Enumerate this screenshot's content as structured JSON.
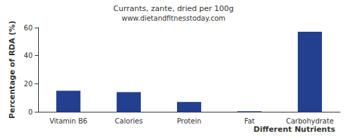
{
  "chart_data": {
    "type": "bar",
    "title": "Currants, zante, dried per 100g",
    "subtitle": "www.dietandfitnesstoday.com",
    "x_label": "Different Nutrients",
    "y_label": "Percentage of RDA (%)",
    "categories": [
      "Vitamin B6",
      "Calories",
      "Protein",
      "Fat",
      "Carbohydrate"
    ],
    "values": [
      15,
      14,
      7,
      0.4,
      57
    ],
    "color": "#233f8f",
    "ylim": [
      0,
      60
    ],
    "yticks": [
      0,
      20,
      40,
      60
    ],
    "grid": false
  }
}
